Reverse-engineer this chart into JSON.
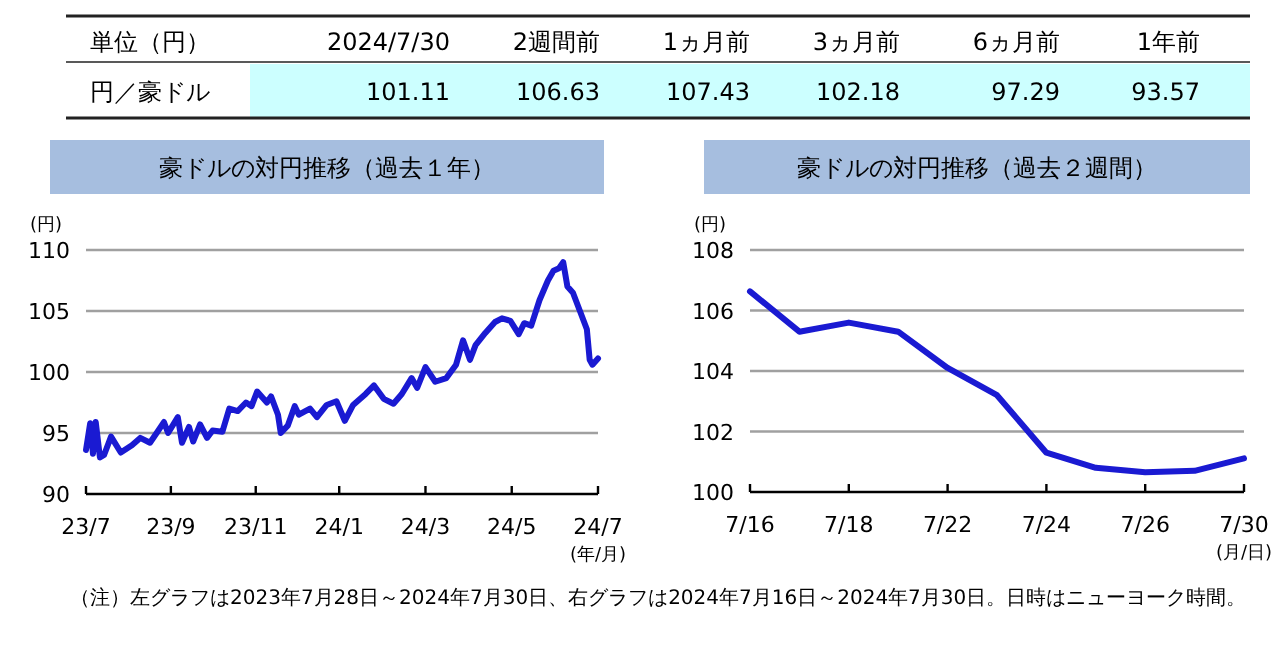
{
  "chart_data": [
    {
      "type": "other",
      "xlabel": "単位（円）",
      "categories": [
        "2024/7/30",
        "2週間前",
        "1ヵ月前",
        "3ヵ月前",
        "6ヵ月前",
        "1年前"
      ],
      "series": [
        {
          "name": "円／豪ドル",
          "color": "#ccffff",
          "values": [
            101.11,
            106.63,
            107.43,
            102.18,
            97.29,
            93.57
          ]
        }
      ],
      "data_labels": true
    },
    {
      "type": "line",
      "title": "豪ドルの対円推移（過去１年）",
      "ylabel": "(円)",
      "xlabel": "(年/月)",
      "grid": "y",
      "xlim": [
        "2023-07-28",
        "2024-07-30"
      ],
      "ylim": [
        90,
        110
      ],
      "yticks": [
        90,
        95,
        100,
        105,
        110
      ],
      "xticks": [
        {
          "value": "2023-07-28",
          "label": "23/7"
        },
        {
          "value": "2023-09-27",
          "label": "23/9"
        },
        {
          "value": "2023-11-27",
          "label": "23/11"
        },
        {
          "value": "2024-01-26",
          "label": "24/1"
        },
        {
          "value": "2024-03-28",
          "label": "24/3"
        },
        {
          "value": "2024-05-29",
          "label": "24/5"
        },
        {
          "value": "2024-07-30",
          "label": "24/7"
        }
      ],
      "x": [
        "2023-07-28",
        "2023-07-31",
        "2023-08-02",
        "2023-08-04",
        "2023-08-07",
        "2023-08-10",
        "2023-08-15",
        "2023-08-22",
        "2023-08-30",
        "2023-09-05",
        "2023-09-12",
        "2023-09-18",
        "2023-09-22",
        "2023-09-25",
        "2023-10-02",
        "2023-10-05",
        "2023-10-10",
        "2023-10-13",
        "2023-10-18",
        "2023-10-23",
        "2023-10-27",
        "2023-11-03",
        "2023-11-08",
        "2023-11-14",
        "2023-11-20",
        "2023-11-24",
        "2023-11-28",
        "2023-12-05",
        "2023-12-08",
        "2023-12-13",
        "2023-12-15",
        "2023-12-20",
        "2023-12-25",
        "2023-12-28",
        "2024-01-05",
        "2024-01-10",
        "2024-01-17",
        "2024-01-24",
        "2024-01-30",
        "2024-02-05",
        "2024-02-14",
        "2024-02-20",
        "2024-02-27",
        "2024-03-05",
        "2024-03-11",
        "2024-03-18",
        "2024-03-22",
        "2024-03-28",
        "2024-04-04",
        "2024-04-12",
        "2024-04-19",
        "2024-04-24",
        "2024-04-29",
        "2024-05-03",
        "2024-05-10",
        "2024-05-17",
        "2024-05-22",
        "2024-05-28",
        "2024-06-03",
        "2024-06-07",
        "2024-06-12",
        "2024-06-14",
        "2024-06-18",
        "2024-06-24",
        "2024-06-28",
        "2024-07-02",
        "2024-07-05",
        "2024-07-08",
        "2024-07-12",
        "2024-07-17",
        "2024-07-22",
        "2024-07-24",
        "2024-07-26",
        "2024-07-30"
      ],
      "series": [
        {
          "color": "#1a1ad2",
          "values": [
            93.6,
            95.8,
            93.3,
            95.9,
            93.0,
            93.2,
            94.7,
            93.4,
            94.0,
            94.6,
            94.2,
            95.2,
            95.9,
            95.0,
            96.3,
            94.2,
            95.5,
            94.3,
            95.7,
            94.6,
            95.2,
            95.1,
            97.0,
            96.8,
            97.5,
            97.2,
            98.4,
            97.5,
            98.0,
            96.5,
            95.0,
            95.6,
            97.2,
            96.5,
            97.0,
            96.3,
            97.3,
            97.6,
            96.0,
            97.3,
            98.2,
            98.9,
            97.8,
            97.4,
            98.2,
            99.5,
            98.7,
            100.4,
            99.2,
            99.5,
            100.6,
            102.6,
            101.0,
            102.2,
            103.2,
            104.1,
            104.4,
            104.2,
            103.1,
            104.0,
            103.8,
            104.5,
            105.9,
            107.5,
            108.3,
            108.5,
            109.0,
            107.0,
            106.5,
            105.0,
            103.5,
            101.0,
            100.6,
            101.11
          ]
        }
      ]
    },
    {
      "type": "line",
      "title": "豪ドルの対円推移（過去２週間）",
      "ylabel": "(円)",
      "xlabel": "(月/日)",
      "grid": "y",
      "ylim": [
        100,
        108
      ],
      "yticks": [
        100,
        102,
        104,
        106,
        108
      ],
      "categories": [
        "7/16",
        null,
        "7/18",
        null,
        "7/22",
        null,
        "7/24",
        null,
        "7/26",
        null,
        "7/30"
      ],
      "series": [
        {
          "color": "#1a1ad2",
          "values": [
            106.63,
            105.3,
            105.6,
            105.3,
            104.1,
            103.2,
            101.3,
            100.8,
            100.65,
            100.7,
            101.11
          ]
        }
      ],
      "annotations": [
        "（注）左グラフは2023年7月28日～2024年7月30日、右グラフは2024年7月16日～2024年7月30日。日時はニューヨーク時間。"
      ]
    }
  ]
}
